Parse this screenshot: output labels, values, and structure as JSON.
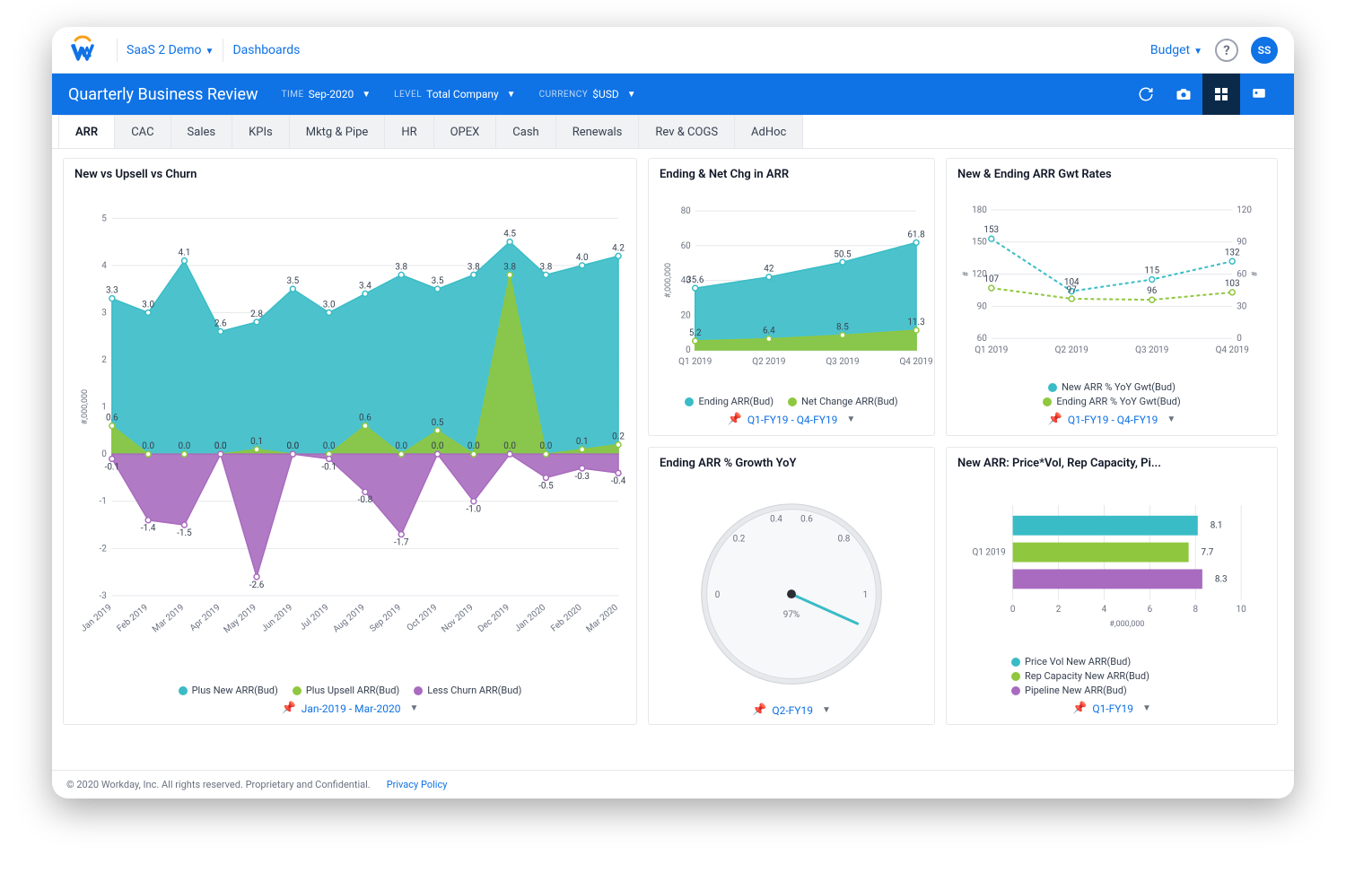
{
  "top": {
    "app_name": "SaaS 2 Demo",
    "nav_link": "Dashboards",
    "budget": "Budget",
    "avatar": "SS"
  },
  "header": {
    "title": "Quarterly Business Review",
    "filters": [
      {
        "label": "TIME",
        "value": "Sep-2020"
      },
      {
        "label": "LEVEL",
        "value": "Total Company"
      },
      {
        "label": "CURRENCY",
        "value": "$USD"
      }
    ]
  },
  "tabs": [
    "ARR",
    "CAC",
    "Sales",
    "KPIs",
    "Mktg & Pipe",
    "HR",
    "OPEX",
    "Cash",
    "Renewals",
    "Rev & COGS",
    "AdHoc"
  ],
  "active_tab": 0,
  "colors": {
    "teal": "#39bcc6",
    "green": "#8fc73e",
    "purple": "#a96bbf",
    "grid": "#e5e7eb",
    "text": "#374151",
    "blue": "#0f72e5"
  },
  "chart1": {
    "title": "New vs Upsell vs Churn",
    "type": "area",
    "y_label": "#,000,000",
    "ylim": [
      -3,
      5
    ],
    "ytick_step": 1,
    "categories": [
      "Jan 2019",
      "Feb 2019",
      "Mar 2019",
      "Apr 2019",
      "May 2019",
      "Jun 2019",
      "Jul 2019",
      "Aug 2019",
      "Sep 2019",
      "Oct 2019",
      "Nov 2019",
      "Dec 2019",
      "Jan 2020",
      "Feb 2020",
      "Mar 2020"
    ],
    "series": [
      {
        "name": "Plus New ARR(Bud)",
        "color": "#39bcc6",
        "values": [
          3.3,
          3.0,
          4.1,
          2.6,
          2.8,
          3.5,
          3.0,
          3.4,
          3.8,
          3.5,
          3.8,
          4.5,
          3.8,
          4.0,
          4.2
        ]
      },
      {
        "name": "Plus Upsell ARR(Bud)",
        "color": "#8fc73e",
        "values": [
          0.6,
          0.0,
          0.0,
          0.0,
          0.1,
          0.0,
          0.0,
          0.6,
          0.0,
          0.5,
          0.0,
          3.8,
          0.0,
          0.1,
          0.2
        ]
      },
      {
        "name": "Less Churn ARR(Bud)",
        "color": "#a96bbf",
        "values": [
          -0.1,
          -1.4,
          -1.5,
          0.0,
          -2.6,
          0.0,
          -0.1,
          -0.8,
          -1.7,
          0.0,
          -1.0,
          0.0,
          -0.5,
          -0.3,
          -0.4
        ]
      }
    ],
    "range": "Jan-2019 - Mar-2020"
  },
  "chart2": {
    "title": "Ending & Net Chg in ARR",
    "type": "area",
    "y_label": "#,000,000",
    "ylim": [
      0,
      80
    ],
    "ytick_step": 20,
    "categories": [
      "Q1 2019",
      "Q2 2019",
      "Q3 2019",
      "Q4 2019"
    ],
    "series": [
      {
        "name": "Ending ARR(Bud)",
        "color": "#39bcc6",
        "values": [
          35.6,
          42.0,
          50.5,
          61.8
        ]
      },
      {
        "name": "Net Change ARR(Bud)",
        "color": "#8fc73e",
        "values": [
          5.2,
          6.4,
          8.5,
          11.3
        ]
      }
    ],
    "range": "Q1-FY19 - Q4-FY19"
  },
  "chart3": {
    "title": "New & Ending ARR Gwt Rates",
    "type": "line",
    "ylim_left": [
      60,
      180
    ],
    "ytick_left": 30,
    "ylim_right": [
      0,
      120
    ],
    "ytick_right": 30,
    "y_label_left": "#",
    "y_label_right": "#",
    "categories": [
      "Q1 2019",
      "Q2 2019",
      "Q3 2019",
      "Q4 2019"
    ],
    "series": [
      {
        "name": "New ARR % YoY Gwt(Bud)",
        "color": "#39bcc6",
        "dash": "4 3",
        "axis": "left",
        "values": [
          153,
          104,
          115,
          132
        ]
      },
      {
        "name": "Ending ARR % YoY Gwt(Bud)",
        "color": "#8fc73e",
        "dash": "4 3",
        "axis": "left",
        "values": [
          107,
          97,
          96,
          103
        ]
      }
    ],
    "range": "Q1-FY19 - Q4-FY19"
  },
  "chart4": {
    "title": "Ending ARR % Growth YoY",
    "type": "gauge",
    "value_label": "97%",
    "value": 0.97,
    "ticks": [
      0,
      0.2,
      0.4,
      0.6,
      0.8,
      1
    ],
    "range": "Q2-FY19"
  },
  "chart5": {
    "title": "New ARR: Price*Vol, Rep Capacity, Pi...",
    "type": "hbar",
    "x_label": "#,000,000",
    "xlim": [
      0,
      10
    ],
    "xtick_step": 2,
    "row_label": "Q1 2019",
    "series": [
      {
        "name": "Price Vol New ARR(Bud)",
        "color": "#39bcc6",
        "value": 8.1
      },
      {
        "name": "Rep Capacity New ARR(Bud)",
        "color": "#8fc73e",
        "value": 7.7
      },
      {
        "name": "Pipeline New ARR(Bud)",
        "color": "#a96bbf",
        "value": 8.3
      }
    ],
    "range": "Q1-FY19"
  },
  "footer": {
    "copyright": "© 2020 Workday, Inc. All rights reserved. Proprietary and Confidential.",
    "privacy": "Privacy Policy"
  }
}
